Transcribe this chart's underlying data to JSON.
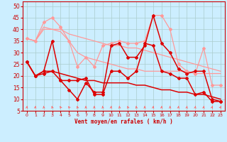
{
  "xlabel": "Vent moyen/en rafales ( km/h )",
  "background_color": "#cceeff",
  "grid_color": "#aacccc",
  "xlim": [
    -0.5,
    23.5
  ],
  "ylim": [
    5,
    52
  ],
  "yticks": [
    5,
    10,
    15,
    20,
    25,
    30,
    35,
    40,
    45,
    50
  ],
  "xticks": [
    0,
    1,
    2,
    3,
    4,
    5,
    6,
    7,
    8,
    9,
    10,
    11,
    12,
    13,
    14,
    15,
    16,
    17,
    18,
    19,
    20,
    21,
    22,
    23
  ],
  "lines": [
    {
      "x": [
        0,
        1,
        2,
        3,
        4,
        5,
        6,
        7,
        8,
        9,
        10,
        11,
        12,
        13,
        14,
        15,
        16,
        17,
        18,
        19,
        20,
        21,
        22,
        23
      ],
      "y": [
        36,
        35,
        43,
        45,
        41,
        35,
        24,
        28,
        24,
        33,
        34,
        35,
        34,
        34,
        35,
        46,
        46,
        40,
        25,
        22,
        21,
        32,
        16,
        16
      ],
      "color": "#ff9999",
      "lw": 0.9,
      "marker": "D",
      "ms": 2.0,
      "zorder": 2
    },
    {
      "x": [
        0,
        1,
        2,
        3,
        4,
        5,
        6,
        7,
        8,
        9,
        10,
        11,
        12,
        13,
        14,
        15,
        16,
        17,
        18,
        19,
        20,
        21,
        22,
        23
      ],
      "y": [
        36,
        35,
        41,
        40,
        40,
        38,
        37,
        36,
        35,
        34,
        33,
        33,
        32,
        32,
        31,
        30,
        29,
        28,
        27,
        26,
        25,
        24,
        23,
        22
      ],
      "color": "#ff9999",
      "lw": 0.9,
      "marker": null,
      "ms": 0,
      "zorder": 2
    },
    {
      "x": [
        0,
        1,
        2,
        3,
        4,
        5,
        6,
        7,
        8,
        9,
        10,
        11,
        12,
        13,
        14,
        15,
        16,
        17,
        18,
        19,
        20,
        21,
        22,
        23
      ],
      "y": [
        36,
        35,
        40,
        40,
        39,
        35,
        30,
        28,
        27,
        26,
        25,
        24,
        23,
        23,
        22,
        22,
        22,
        22,
        22,
        22,
        21,
        21,
        21,
        21
      ],
      "color": "#ff9999",
      "lw": 0.9,
      "marker": null,
      "ms": 0,
      "zorder": 2
    },
    {
      "x": [
        0,
        1,
        2,
        3,
        4,
        5,
        6,
        7,
        8,
        9,
        10,
        11,
        12,
        13,
        14,
        15,
        16,
        17,
        18,
        19,
        20,
        21,
        22,
        23
      ],
      "y": [
        26,
        20,
        22,
        35,
        18,
        14,
        10,
        17,
        13,
        13,
        33,
        34,
        28,
        28,
        33,
        46,
        34,
        30,
        23,
        21,
        22,
        22,
        10,
        9
      ],
      "color": "#dd0000",
      "lw": 1.1,
      "marker": "D",
      "ms": 2.0,
      "zorder": 3
    },
    {
      "x": [
        0,
        1,
        2,
        3,
        4,
        5,
        6,
        7,
        8,
        9,
        10,
        11,
        12,
        13,
        14,
        15,
        16,
        17,
        18,
        19,
        20,
        21,
        22,
        23
      ],
      "y": [
        26,
        20,
        21,
        22,
        18,
        18,
        18,
        19,
        12,
        12,
        22,
        22,
        19,
        22,
        34,
        33,
        22,
        21,
        19,
        19,
        12,
        13,
        9,
        9
      ],
      "color": "#dd0000",
      "lw": 1.1,
      "marker": "D",
      "ms": 2.0,
      "zorder": 3
    },
    {
      "x": [
        0,
        1,
        2,
        3,
        4,
        5,
        6,
        7,
        8,
        9,
        10,
        11,
        12,
        13,
        14,
        15,
        16,
        17,
        18,
        19,
        20,
        21,
        22,
        23
      ],
      "y": [
        26,
        20,
        22,
        22,
        21,
        20,
        19,
        18,
        18,
        17,
        17,
        17,
        17,
        16,
        16,
        15,
        14,
        14,
        13,
        13,
        12,
        12,
        11,
        10
      ],
      "color": "#dd0000",
      "lw": 1.1,
      "marker": null,
      "ms": 0,
      "zorder": 3
    }
  ],
  "arrows": {
    "x": [
      0,
      1,
      2,
      3,
      4,
      5,
      6,
      7,
      8,
      9,
      10,
      11,
      12,
      13,
      14,
      15,
      16,
      17,
      18,
      19,
      20,
      21,
      22,
      23
    ],
    "angles": [
      80,
      80,
      100,
      110,
      120,
      130,
      110,
      90,
      90,
      100,
      80,
      100,
      110,
      100,
      90,
      80,
      80,
      90,
      80,
      80,
      80,
      80,
      70,
      60
    ],
    "color": "#ff6666",
    "y": 6.5
  }
}
